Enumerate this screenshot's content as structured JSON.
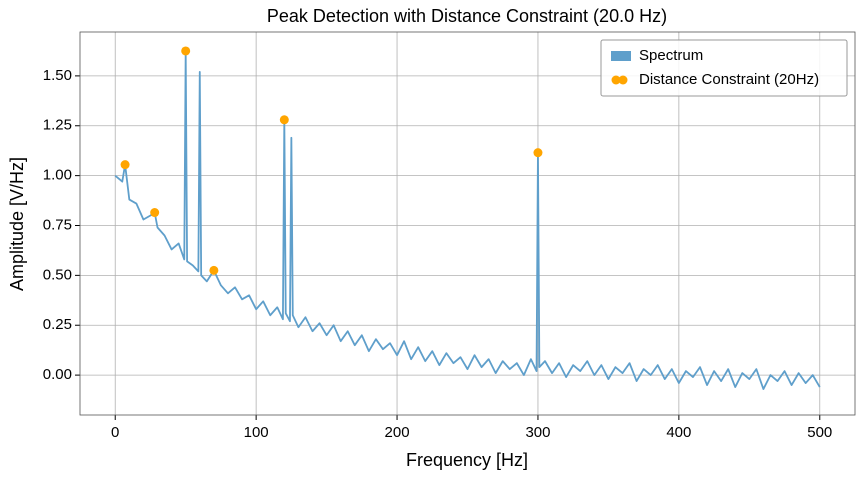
{
  "chart_data": {
    "type": "line",
    "title": "Peak Detection with Distance Constraint (20.0 Hz)",
    "x_label": "Frequency [Hz]",
    "y_label": "Amplitude [V/Hz]",
    "xlim": [
      -25,
      525
    ],
    "ylim": [
      -0.2,
      1.72
    ],
    "xticks": [
      0,
      100,
      200,
      300,
      400,
      500
    ],
    "yticks": [
      {
        "value": 0,
        "label": "0.00"
      },
      {
        "value": 0.25,
        "label": "0.25"
      },
      {
        "value": 0.5,
        "label": "0.50"
      },
      {
        "value": 0.75,
        "label": "0.75"
      },
      {
        "value": 1,
        "label": "1.00"
      },
      {
        "value": 1.25,
        "label": "1.25"
      },
      {
        "value": 1.5,
        "label": "1.50"
      }
    ],
    "grid": true,
    "legend": "upper right",
    "series": [
      {
        "name": "Spectrum",
        "type": "line",
        "color": "#5f9fcb",
        "x": [
          0,
          5,
          7,
          10,
          15,
          20,
          25,
          28,
          30,
          35,
          40,
          45,
          49,
          50,
          51,
          55,
          59,
          60,
          61,
          65,
          70,
          75,
          80,
          85,
          90,
          95,
          100,
          105,
          110,
          115,
          119,
          120,
          121,
          124,
          125,
          126,
          130,
          135,
          140,
          145,
          150,
          155,
          160,
          165,
          170,
          175,
          180,
          185,
          190,
          195,
          200,
          205,
          210,
          215,
          220,
          225,
          230,
          235,
          240,
          245,
          250,
          255,
          260,
          265,
          270,
          275,
          280,
          285,
          290,
          295,
          299,
          300,
          301,
          305,
          310,
          315,
          320,
          325,
          330,
          335,
          340,
          345,
          350,
          355,
          360,
          365,
          370,
          375,
          380,
          385,
          390,
          395,
          400,
          405,
          410,
          415,
          420,
          425,
          430,
          435,
          440,
          445,
          450,
          455,
          460,
          465,
          470,
          475,
          480,
          485,
          490,
          495,
          500
        ],
        "values": [
          1.0,
          0.97,
          1.055,
          0.88,
          0.86,
          0.78,
          0.8,
          0.815,
          0.74,
          0.7,
          0.63,
          0.66,
          0.58,
          1.625,
          0.57,
          0.55,
          0.52,
          1.52,
          0.5,
          0.47,
          0.525,
          0.45,
          0.41,
          0.44,
          0.38,
          0.4,
          0.33,
          0.37,
          0.3,
          0.34,
          0.28,
          1.28,
          0.31,
          0.27,
          1.19,
          0.3,
          0.24,
          0.29,
          0.22,
          0.26,
          0.2,
          0.25,
          0.17,
          0.22,
          0.15,
          0.2,
          0.12,
          0.18,
          0.13,
          0.16,
          0.1,
          0.17,
          0.08,
          0.14,
          0.07,
          0.12,
          0.05,
          0.11,
          0.06,
          0.09,
          0.03,
          0.1,
          0.04,
          0.08,
          0.01,
          0.07,
          0.03,
          0.06,
          0.0,
          0.08,
          0.02,
          1.115,
          0.04,
          0.07,
          0.01,
          0.06,
          -0.01,
          0.05,
          0.02,
          0.07,
          0.0,
          0.05,
          -0.02,
          0.04,
          0.01,
          0.06,
          -0.03,
          0.03,
          0.0,
          0.05,
          -0.02,
          0.03,
          -0.04,
          0.02,
          -0.01,
          0.04,
          -0.05,
          0.02,
          -0.03,
          0.03,
          -0.06,
          0.01,
          -0.02,
          0.03,
          -0.07,
          0.0,
          -0.03,
          0.02,
          -0.05,
          0.01,
          -0.04,
          0.0,
          -0.06
        ]
      },
      {
        "name": "Distance Constraint (20Hz)",
        "type": "scatter",
        "color": "#ffa500",
        "x": [
          7,
          28,
          50,
          70,
          120,
          300
        ],
        "values": [
          1.055,
          0.815,
          1.625,
          0.525,
          1.28,
          1.115
        ]
      }
    ]
  }
}
